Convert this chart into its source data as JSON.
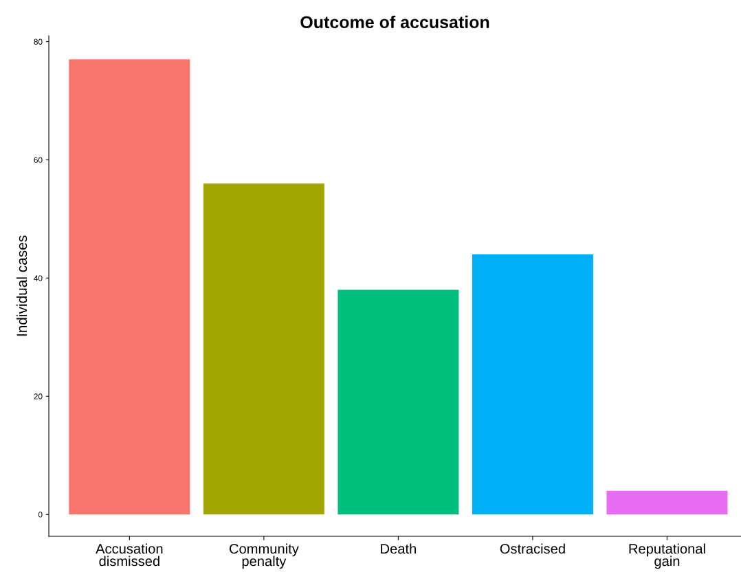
{
  "chart_data": {
    "type": "bar",
    "title": "Outcome of accusation",
    "ylabel": "Individual cases",
    "categories": [
      "Accusation\ndismissed",
      "Community\npenalty",
      "Death",
      "Ostracised",
      "Reputational\ngain"
    ],
    "values": [
      77,
      56,
      38,
      44,
      4
    ],
    "colors": [
      "#f8766d",
      "#a3a500",
      "#00bf7d",
      "#00b0f6",
      "#e76bf3"
    ],
    "ylim": [
      -3.7,
      81
    ],
    "yticks": [
      0,
      20,
      40,
      60,
      80
    ],
    "grid": false,
    "legend": false
  }
}
